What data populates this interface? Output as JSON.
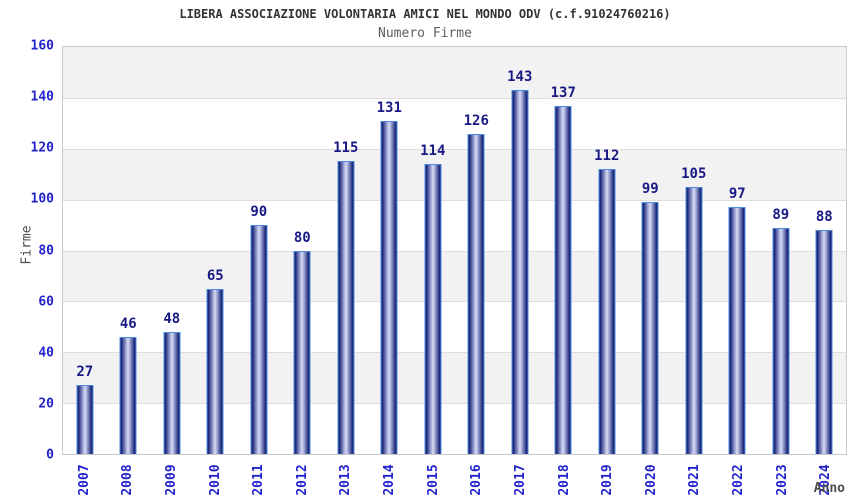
{
  "title": "LIBERA ASSOCIAZIONE VOLONTARIA AMICI NEL MONDO ODV (c.f.91024760216)",
  "subtitle": "Numero Firme",
  "chart_data": {
    "type": "bar",
    "title": "LIBERA ASSOCIAZIONE VOLONTARIA AMICI NEL MONDO ODV (c.f.91024760216)",
    "subtitle": "Numero Firme",
    "xlabel": "Anno",
    "ylabel": "Firme",
    "categories": [
      "2007",
      "2008",
      "2009",
      "2010",
      "2011",
      "2012",
      "2013",
      "2014",
      "2015",
      "2016",
      "2017",
      "2018",
      "2019",
      "2020",
      "2021",
      "2022",
      "2023",
      "2024"
    ],
    "values": [
      27,
      46,
      48,
      65,
      90,
      80,
      115,
      131,
      114,
      126,
      143,
      137,
      112,
      99,
      105,
      97,
      89,
      88
    ],
    "ylim": [
      0,
      160
    ],
    "yticks": [
      0,
      20,
      40,
      60,
      80,
      100,
      120,
      140,
      160
    ],
    "grid": "alternating horizontal bands, gridline every 20",
    "legend": "none",
    "bar_labels_shown": true
  },
  "colors": {
    "title_color": "#333333",
    "subtitle_color": "#5f5f5f",
    "tick_color": "#2323cc",
    "value_color": "#191985",
    "axis_title_color": "#4d4d4d",
    "plot_border": "#c9c9c9",
    "grid_line": "#dedede",
    "band_gray": "#f2f2f2",
    "bar_border": "#4c8be0",
    "bar_edge": "#1d2878",
    "bar_mid": "#8b94cb",
    "bar_center": "#d9dcf1"
  }
}
